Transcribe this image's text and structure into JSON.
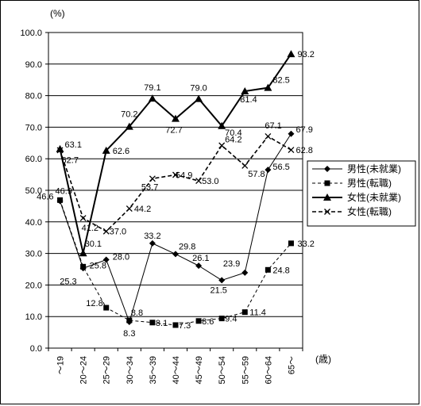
{
  "chart_data": {
    "type": "line",
    "y_unit_label": "(%)",
    "x_unit_label": "(歳)",
    "ylim": [
      0,
      100
    ],
    "y_ticks": [
      "0.0",
      "10.0",
      "20.0",
      "30.0",
      "40.0",
      "50.0",
      "60.0",
      "70.0",
      "80.0",
      "90.0",
      "100.0"
    ],
    "grid": true,
    "legend_position": "right",
    "categories": [
      "〜19",
      "20〜24",
      "25〜29",
      "30〜34",
      "35〜39",
      "40〜44",
      "45〜49",
      "50〜54",
      "55〜59",
      "60〜64",
      "65〜"
    ],
    "series": [
      {
        "name": "男性(未就業)",
        "style": "solid-thin",
        "marker": "diamond",
        "values": [
          46.6,
          25.3,
          28.0,
          8.3,
          33.2,
          29.8,
          26.1,
          21.5,
          23.9,
          56.5,
          67.9
        ],
        "labels": [
          "46.6",
          "25.3",
          "28.0",
          "8.3",
          "33.2",
          "29.8",
          "26.1",
          "21.5",
          "23.9",
          "56.5",
          "67.9"
        ]
      },
      {
        "name": "男性(転職)",
        "style": "dashed-thin",
        "marker": "square",
        "values": [
          46.9,
          25.8,
          12.8,
          8.8,
          8.1,
          7.3,
          8.6,
          9.4,
          11.4,
          24.8,
          33.2
        ],
        "labels": [
          "46.9",
          "25.8",
          "12.8",
          "8.8",
          "8.1",
          "7.3",
          "8.6",
          "9.4",
          "11.4",
          "24.8",
          "33.2"
        ]
      },
      {
        "name": "女性(未就業)",
        "style": "solid-thick",
        "marker": "triangle",
        "values": [
          63.1,
          30.1,
          62.6,
          70.2,
          79.1,
          72.7,
          79.0,
          70.4,
          81.4,
          82.5,
          93.2
        ],
        "labels": [
          "63.1",
          "30.1",
          "62.6",
          "70.2",
          "79.1",
          "72.7",
          "79.0",
          "70.4",
          "81.4",
          "82.5",
          "93.2"
        ]
      },
      {
        "name": "女性(転職)",
        "style": "dashed-thick",
        "marker": "x",
        "values": [
          62.7,
          41.2,
          37.0,
          44.2,
          53.7,
          54.9,
          53.0,
          64.2,
          57.8,
          67.1,
          62.8
        ],
        "labels": [
          "62.7",
          "41.2",
          "37.0",
          "44.2",
          "53.7",
          "54.9",
          "53.0",
          "64.2",
          "57.8",
          "67.1",
          "62.8"
        ]
      }
    ]
  }
}
